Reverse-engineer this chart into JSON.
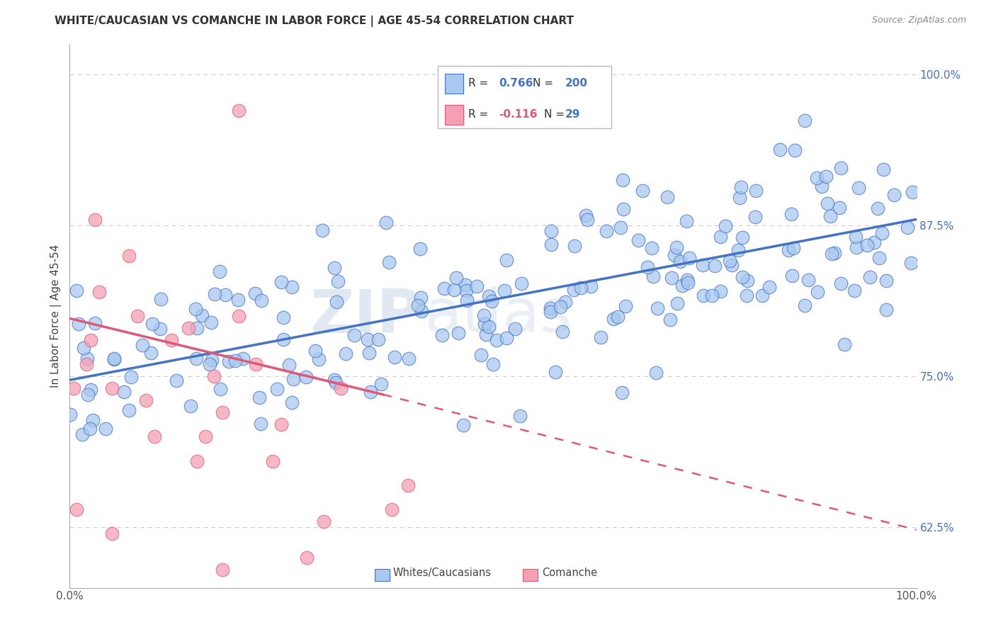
{
  "title": "WHITE/CAUCASIAN VS COMANCHE IN LABOR FORCE | AGE 45-54 CORRELATION CHART",
  "source": "Source: ZipAtlas.com",
  "ylabel": "In Labor Force | Age 45-54",
  "xlim": [
    0.0,
    1.0
  ],
  "ylim": [
    0.575,
    1.025
  ],
  "yticks": [
    0.625,
    0.75,
    0.875,
    1.0
  ],
  "ytick_labels": [
    "62.5%",
    "75.0%",
    "87.5%",
    "100.0%"
  ],
  "xticks": [
    0.0,
    1.0
  ],
  "xtick_labels": [
    "0.0%",
    "100.0%"
  ],
  "watermark_zip": "ZIP",
  "watermark_atlas": "atlas",
  "legend_labels": [
    "Whites/Caucasians",
    "Comanche"
  ],
  "blue_color": "#A8C8F0",
  "pink_color": "#F4A0B4",
  "blue_line_color": "#4472C4",
  "pink_line_color": "#E05878",
  "blue_R": "0.766",
  "blue_N": "200",
  "pink_R": "-0.116",
  "pink_N": "29",
  "blue_trendline": [
    0.0,
    1.0,
    0.747,
    0.88
  ],
  "pink_trendline_solid": [
    0.0,
    0.37,
    0.798,
    0.735
  ],
  "pink_trendline_dash": [
    0.37,
    1.0,
    0.735,
    0.623
  ],
  "background_color": "#FFFFFF",
  "grid_color": "#CCCCCC",
  "title_fontsize": 11,
  "axis_label_fontsize": 11,
  "tick_fontsize": 11,
  "seed": 12345
}
